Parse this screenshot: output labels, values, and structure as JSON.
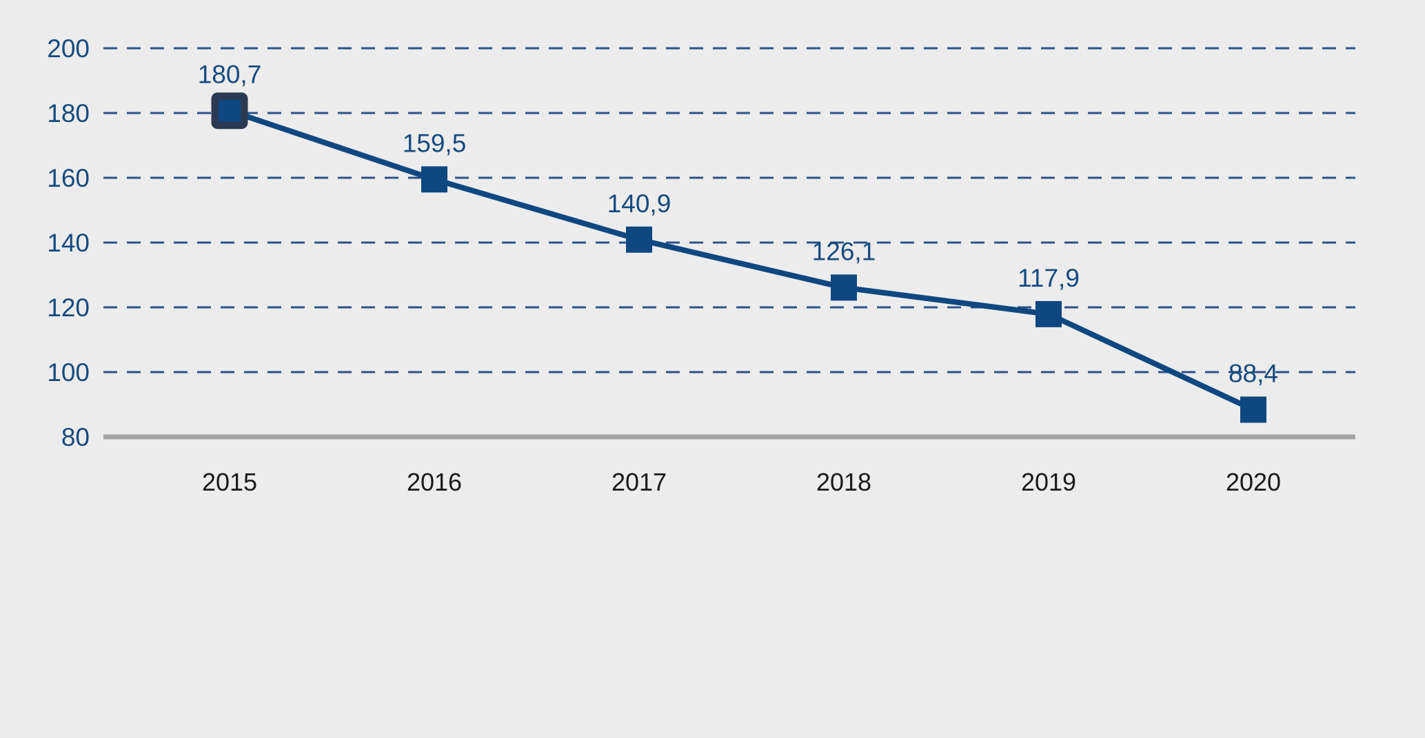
{
  "chart_data": {
    "type": "line",
    "title": "",
    "xlabel": "",
    "ylabel": "",
    "categories": [
      "2015",
      "2016",
      "2017",
      "2018",
      "2019",
      "2020"
    ],
    "values": [
      180.7,
      159.5,
      140.9,
      126.1,
      117.9,
      88.4
    ],
    "point_labels": [
      "180,7",
      "159,5",
      "140,9",
      "126,1",
      "117,9",
      "88,4"
    ],
    "y_ticks": [
      200,
      180,
      160,
      140,
      120,
      100,
      80
    ],
    "y_tick_labels": [
      "200",
      "180",
      "160",
      "140",
      "120",
      "100",
      "80"
    ],
    "ylim": [
      80,
      200
    ],
    "grid": "horizontal-dashed",
    "baseline_value": 80,
    "marker_shape": "square",
    "highlighted_category": "2015",
    "legend": "none",
    "colors": {
      "background": "#ECECEC",
      "series_line": "#0F4781",
      "marker_fill": "#0F4781",
      "highlight_border": "#2B3A52",
      "gridline": "#2A5288",
      "baseline_axis": "#A3A3A3",
      "y_tick_label": "#164A7E",
      "x_tick_label": "#1A1A1A",
      "point_label": "#164A7E"
    }
  }
}
